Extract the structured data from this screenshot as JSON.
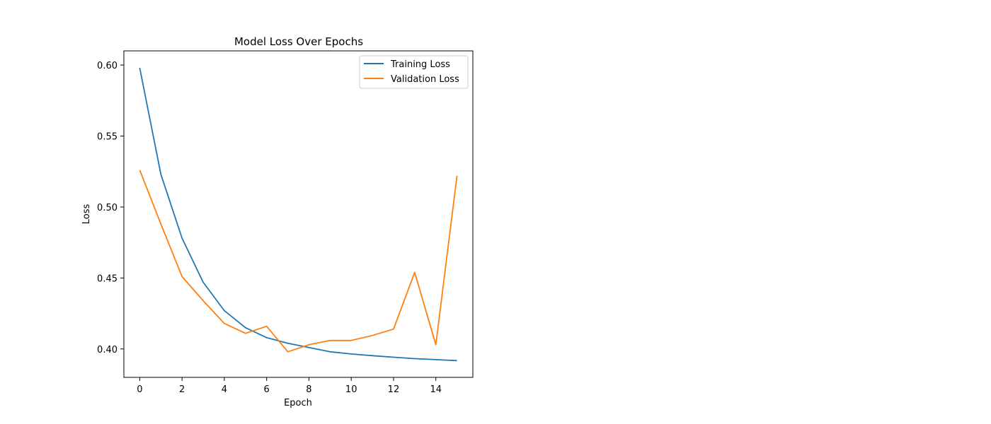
{
  "chart_data": {
    "type": "line",
    "title": "Model Loss Over Epochs",
    "xlabel": "Epoch",
    "ylabel": "Loss",
    "xlim": [
      -0.75,
      15.75
    ],
    "ylim": [
      0.38,
      0.61
    ],
    "x_ticks": [
      0,
      2,
      4,
      6,
      8,
      10,
      12,
      14
    ],
    "y_ticks": [
      0.4,
      0.45,
      0.5,
      0.55,
      0.6
    ],
    "x_tick_labels": [
      "0",
      "2",
      "4",
      "6",
      "8",
      "10",
      "12",
      "14"
    ],
    "y_tick_labels": [
      "0.40",
      "0.45",
      "0.50",
      "0.55",
      "0.60"
    ],
    "x": [
      0,
      1,
      2,
      3,
      4,
      5,
      6,
      7,
      8,
      9,
      10,
      11,
      12,
      13,
      14,
      15
    ],
    "grid": false,
    "legend_position": "top-right",
    "series": [
      {
        "name": "Training Loss",
        "color": "#1f77b4",
        "values": [
          0.598,
          0.523,
          0.478,
          0.447,
          0.427,
          0.415,
          0.408,
          0.404,
          0.401,
          0.398,
          0.3965,
          0.3953,
          0.3942,
          0.3932,
          0.3925,
          0.3918
        ]
      },
      {
        "name": "Validation Loss",
        "color": "#ff7f0e",
        "values": [
          0.526,
          0.488,
          0.451,
          0.434,
          0.418,
          0.411,
          0.416,
          0.398,
          0.403,
          0.406,
          0.406,
          0.4095,
          0.414,
          0.454,
          0.403,
          0.522
        ]
      }
    ]
  }
}
